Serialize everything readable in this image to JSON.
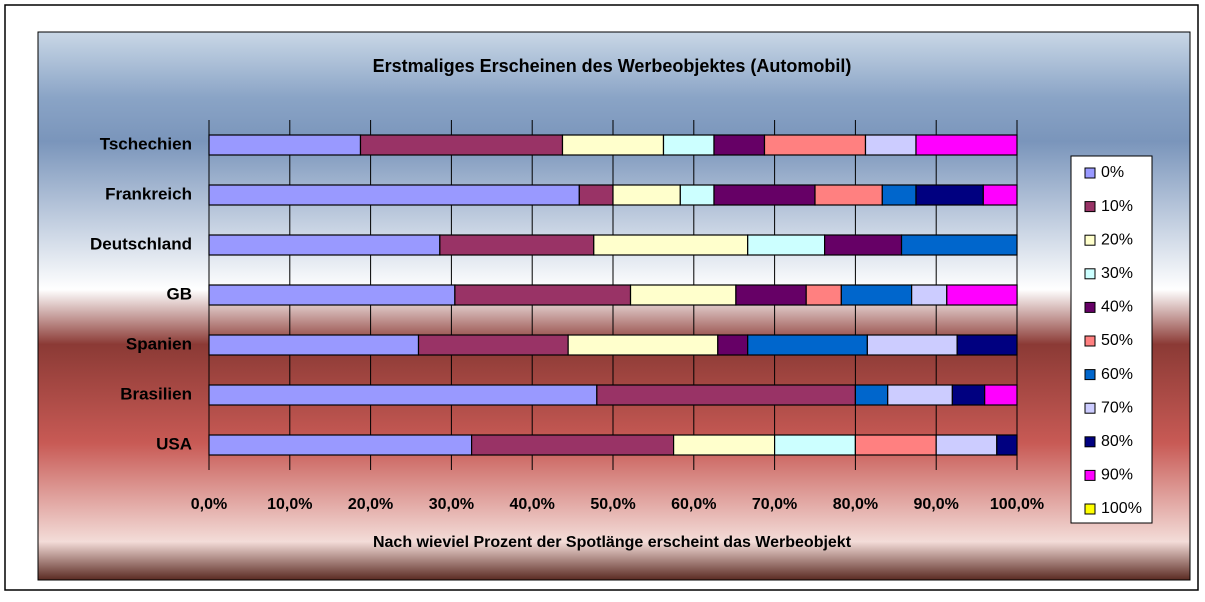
{
  "chart_data": {
    "type": "stacked_barh",
    "title": "Erstmaliges Erscheinen des Werbeobjektes (Automobil)",
    "x_label": "Nach wieviel Prozent der Spotlänge erscheint das Werbeobjekt",
    "categories": [
      "Tschechien",
      "Frankreich",
      "Deutschland",
      "GB",
      "Spanien",
      "Brasilien",
      "USA"
    ],
    "series": [
      {
        "name": "0%",
        "color": "#9999ff",
        "values": [
          18.75,
          45.83,
          28.57,
          30.43,
          25.93,
          48,
          32.5
        ]
      },
      {
        "name": "10%",
        "color": "#993366",
        "values": [
          25,
          4.17,
          19.05,
          21.74,
          18.52,
          32,
          25
        ]
      },
      {
        "name": "20%",
        "color": "#ffffcc",
        "values": [
          12.5,
          8.33,
          19.05,
          13.04,
          18.52,
          0,
          12.5
        ]
      },
      {
        "name": "30%",
        "color": "#ccffff",
        "values": [
          6.25,
          4.17,
          9.52,
          0,
          0,
          0,
          10
        ]
      },
      {
        "name": "40%",
        "color": "#660066",
        "values": [
          6.25,
          12.5,
          9.52,
          8.7,
          3.7,
          0,
          0
        ]
      },
      {
        "name": "50%",
        "color": "#ff8080",
        "values": [
          12.5,
          8.33,
          0,
          4.35,
          0,
          0,
          10
        ]
      },
      {
        "name": "60%",
        "color": "#0066cc",
        "values": [
          0,
          4.17,
          14.29,
          8.7,
          14.81,
          4,
          0
        ]
      },
      {
        "name": "70%",
        "color": "#ccccff",
        "values": [
          6.25,
          0,
          0,
          4.35,
          11.11,
          8,
          7.5
        ]
      },
      {
        "name": "80%",
        "color": "#000080",
        "values": [
          0,
          8.33,
          0,
          0,
          7.41,
          4,
          2.5
        ]
      },
      {
        "name": "90%",
        "color": "#ff00ff",
        "values": [
          12.5,
          4.17,
          0,
          8.7,
          0,
          4,
          0
        ]
      },
      {
        "name": "100%",
        "color": "#ffff00",
        "values": [
          0,
          0,
          0,
          0,
          0,
          0,
          0
        ]
      }
    ],
    "xlim": [
      0,
      100
    ],
    "xticks": [
      {
        "value": 0,
        "label": "0,0%"
      },
      {
        "value": 10,
        "label": "10,0%"
      },
      {
        "value": 20,
        "label": "20,0%"
      },
      {
        "value": 30,
        "label": "30,0%"
      },
      {
        "value": 40,
        "label": "40,0%"
      },
      {
        "value": 50,
        "label": "50,0%"
      },
      {
        "value": 60,
        "label": "60,0%"
      },
      {
        "value": 70,
        "label": "70,0%"
      },
      {
        "value": 80,
        "label": "80,0%"
      },
      {
        "value": 90,
        "label": "90,0%"
      },
      {
        "value": 100,
        "label": "100,0%"
      }
    ],
    "grid": true,
    "legend": "right"
  }
}
